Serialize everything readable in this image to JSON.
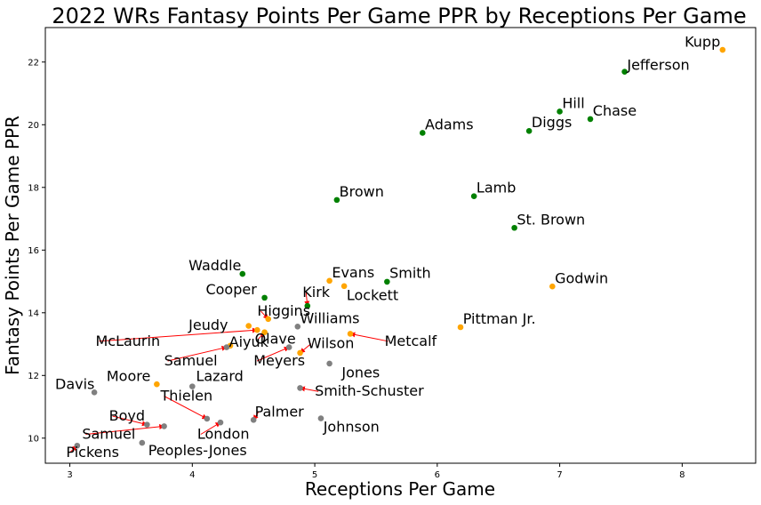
{
  "chart_data": {
    "type": "scatter",
    "title": "2022 WRs Fantasy Points Per Game PPR by Receptions Per Game",
    "xlabel": "Receptions Per Game",
    "ylabel": "Fantasy Points Per Game PPR",
    "xlim": [
      2.8,
      8.6
    ],
    "ylim": [
      9.2,
      23.1
    ],
    "xticks": [
      "3",
      "4",
      "5",
      "6",
      "7",
      "8"
    ],
    "yticks": [
      "10",
      "12",
      "14",
      "16",
      "18",
      "20",
      "22"
    ],
    "grid": false,
    "legend": "none",
    "colors": {
      "green": "#008000",
      "orange": "#ffa500",
      "gray": "#808080",
      "arrow": "#ff0000"
    },
    "points": [
      {
        "name": "Kupp",
        "x": 8.33,
        "y": 22.39,
        "color": "orange"
      },
      {
        "name": "Jefferson",
        "x": 7.53,
        "y": 21.69,
        "color": "green"
      },
      {
        "name": "Hill",
        "x": 7.0,
        "y": 20.42,
        "color": "green"
      },
      {
        "name": "Chase",
        "x": 7.25,
        "y": 20.18,
        "color": "green"
      },
      {
        "name": "Diggs",
        "x": 6.75,
        "y": 19.8,
        "color": "green"
      },
      {
        "name": "Adams",
        "x": 5.88,
        "y": 19.74,
        "color": "green"
      },
      {
        "name": "Lamb",
        "x": 6.3,
        "y": 17.72,
        "color": "green"
      },
      {
        "name": "Brown",
        "x": 5.18,
        "y": 17.6,
        "color": "green"
      },
      {
        "name": "St. Brown",
        "x": 6.63,
        "y": 16.71,
        "color": "green"
      },
      {
        "name": "Waddle",
        "x": 4.41,
        "y": 15.24,
        "color": "green"
      },
      {
        "name": "Smith",
        "x": 5.59,
        "y": 14.99,
        "color": "green"
      },
      {
        "name": "Evans",
        "x": 5.12,
        "y": 15.02,
        "color": "orange"
      },
      {
        "name": "Godwin",
        "x": 6.94,
        "y": 14.84,
        "color": "orange"
      },
      {
        "name": "Lockett",
        "x": 5.24,
        "y": 14.85,
        "color": "orange"
      },
      {
        "name": "Cooper",
        "x": 4.59,
        "y": 14.48,
        "color": "green"
      },
      {
        "name": "Kirk",
        "x": 4.94,
        "y": 14.22,
        "color": "green"
      },
      {
        "name": "Higgins",
        "x": 4.62,
        "y": 13.8,
        "color": "orange"
      },
      {
        "name": "Williams",
        "x": 4.86,
        "y": 13.56,
        "color": "gray"
      },
      {
        "name": "Pittman Jr.",
        "x": 6.19,
        "y": 13.54,
        "color": "orange"
      },
      {
        "name": "Jeudy",
        "x": 4.46,
        "y": 13.58,
        "color": "orange"
      },
      {
        "name": "McLaurin",
        "x": 4.53,
        "y": 13.45,
        "color": "orange"
      },
      {
        "name": "Olave",
        "x": 4.59,
        "y": 13.38,
        "color": "orange"
      },
      {
        "name": "Metcalf",
        "x": 5.29,
        "y": 13.33,
        "color": "orange"
      },
      {
        "name": "Aiyuk",
        "x": 4.31,
        "y": 12.95,
        "color": "orange"
      },
      {
        "name": "Samuel",
        "x": 4.28,
        "y": 12.9,
        "color": "gray"
      },
      {
        "name": "Wilson",
        "x": 4.88,
        "y": 12.72,
        "color": "orange"
      },
      {
        "name": "Meyers",
        "x": 4.79,
        "y": 12.9,
        "color": "gray"
      },
      {
        "name": "Jones",
        "x": 5.12,
        "y": 12.38,
        "color": "gray"
      },
      {
        "name": "Moore",
        "x": 3.71,
        "y": 11.72,
        "color": "orange"
      },
      {
        "name": "Lazard",
        "x": 4.0,
        "y": 11.65,
        "color": "gray"
      },
      {
        "name": "Smith-Schuster",
        "x": 4.88,
        "y": 11.6,
        "color": "gray"
      },
      {
        "name": "Davis",
        "x": 3.2,
        "y": 11.46,
        "color": "gray"
      },
      {
        "name": "Thielen",
        "x": 4.12,
        "y": 10.62,
        "color": "gray"
      },
      {
        "name": "Palmer",
        "x": 4.5,
        "y": 10.58,
        "color": "gray"
      },
      {
        "name": "Johnson",
        "x": 5.05,
        "y": 10.63,
        "color": "gray"
      },
      {
        "name": "London",
        "x": 4.23,
        "y": 10.5,
        "color": "gray"
      },
      {
        "name": "Boyd",
        "x": 3.63,
        "y": 10.43,
        "color": "gray"
      },
      {
        "name": "Samuel",
        "x": 3.77,
        "y": 10.38,
        "color": "gray"
      },
      {
        "name": "Peoples-Jones",
        "x": 3.59,
        "y": 9.85,
        "color": "gray"
      },
      {
        "name": "Pickens",
        "x": 3.06,
        "y": 9.76,
        "color": "gray"
      }
    ],
    "labels": [
      {
        "text": "Kupp",
        "x": 8.02,
        "y": 22.49,
        "ha": "start",
        "arrow": false
      },
      {
        "text": "Jefferson",
        "x": 7.55,
        "y": 21.75,
        "ha": "start",
        "arrow": false
      },
      {
        "text": "Hill",
        "x": 7.02,
        "y": 20.53,
        "ha": "start",
        "arrow": false
      },
      {
        "text": "Chase",
        "x": 7.27,
        "y": 20.29,
        "ha": "start",
        "arrow": false
      },
      {
        "text": "Diggs",
        "x": 6.77,
        "y": 19.92,
        "ha": "start",
        "arrow": false
      },
      {
        "text": "Adams",
        "x": 5.9,
        "y": 19.85,
        "ha": "start",
        "arrow": false
      },
      {
        "text": "Lamb",
        "x": 6.32,
        "y": 17.84,
        "ha": "start",
        "arrow": false
      },
      {
        "text": "Brown",
        "x": 5.2,
        "y": 17.71,
        "ha": "start",
        "arrow": false
      },
      {
        "text": "St. Brown",
        "x": 6.65,
        "y": 16.82,
        "ha": "start",
        "arrow": false
      },
      {
        "text": "Waddle",
        "x": 3.97,
        "y": 15.35,
        "ha": "start",
        "arrow": false
      },
      {
        "text": "Smith",
        "x": 5.61,
        "y": 15.11,
        "ha": "start",
        "arrow": false
      },
      {
        "text": "Evans",
        "x": 5.14,
        "y": 15.13,
        "ha": "start",
        "arrow": false
      },
      {
        "text": "Godwin",
        "x": 6.96,
        "y": 14.95,
        "ha": "start",
        "arrow": false
      },
      {
        "text": "Lockett",
        "x": 5.26,
        "y": 14.4,
        "ha": "start",
        "arrow": false
      },
      {
        "text": "Cooper",
        "x": 4.11,
        "y": 14.59,
        "ha": "start",
        "arrow": false
      },
      {
        "text": "Kirk",
        "x": 4.9,
        "y": 14.5,
        "ha": "start",
        "arrow": true
      },
      {
        "text": "Higgins",
        "x": 4.53,
        "y": 13.91,
        "ha": "start",
        "arrow": true
      },
      {
        "text": "Williams",
        "x": 4.88,
        "y": 13.67,
        "ha": "start",
        "arrow": false
      },
      {
        "text": "Pittman Jr.",
        "x": 6.21,
        "y": 13.65,
        "ha": "start",
        "arrow": false
      },
      {
        "text": "Jeudy",
        "x": 3.97,
        "y": 13.45,
        "ha": "start",
        "arrow": false
      },
      {
        "text": "McLaurin",
        "x": 3.21,
        "y": 12.95,
        "ha": "start",
        "arrow": true
      },
      {
        "text": "Olave",
        "x": 4.51,
        "y": 13.02,
        "ha": "start",
        "arrow": true
      },
      {
        "text": "Metcalf",
        "x": 5.57,
        "y": 12.95,
        "ha": "start",
        "arrow": true
      },
      {
        "text": "Aiyuk",
        "x": 4.3,
        "y": 12.92,
        "ha": "start",
        "arrow": false
      },
      {
        "text": "Samuel",
        "x": 3.77,
        "y": 12.32,
        "ha": "start",
        "arrow": true
      },
      {
        "text": "Wilson",
        "x": 4.94,
        "y": 12.87,
        "ha": "start",
        "arrow": true
      },
      {
        "text": "Meyers",
        "x": 4.5,
        "y": 12.32,
        "ha": "start",
        "arrow": true
      },
      {
        "text": "Jones",
        "x": 5.22,
        "y": 11.94,
        "ha": "start",
        "arrow": false
      },
      {
        "text": "Moore",
        "x": 3.3,
        "y": 11.83,
        "ha": "start",
        "arrow": false
      },
      {
        "text": "Lazard",
        "x": 4.03,
        "y": 11.83,
        "ha": "start",
        "arrow": false
      },
      {
        "text": "Smith-Schuster",
        "x": 5.0,
        "y": 11.35,
        "ha": "start",
        "arrow": true
      },
      {
        "text": "Davis",
        "x": 2.88,
        "y": 11.57,
        "ha": "start",
        "arrow": false
      },
      {
        "text": "Thielen",
        "x": 3.74,
        "y": 11.2,
        "ha": "start",
        "arrow": true
      },
      {
        "text": "Palmer",
        "x": 4.51,
        "y": 10.69,
        "ha": "start",
        "arrow": true
      },
      {
        "text": "Johnson",
        "x": 5.07,
        "y": 10.2,
        "ha": "start",
        "arrow": false
      },
      {
        "text": "London",
        "x": 4.04,
        "y": 9.98,
        "ha": "start",
        "arrow": true
      },
      {
        "text": "Boyd",
        "x": 3.32,
        "y": 10.56,
        "ha": "start",
        "arrow": true
      },
      {
        "text": "Samuel",
        "x": 3.1,
        "y": 9.98,
        "ha": "start",
        "arrow": true
      },
      {
        "text": "Peoples-Jones",
        "x": 3.64,
        "y": 9.46,
        "ha": "start",
        "arrow": false
      },
      {
        "text": "Pickens",
        "x": 2.97,
        "y": 9.4,
        "ha": "start",
        "arrow": true
      }
    ]
  }
}
